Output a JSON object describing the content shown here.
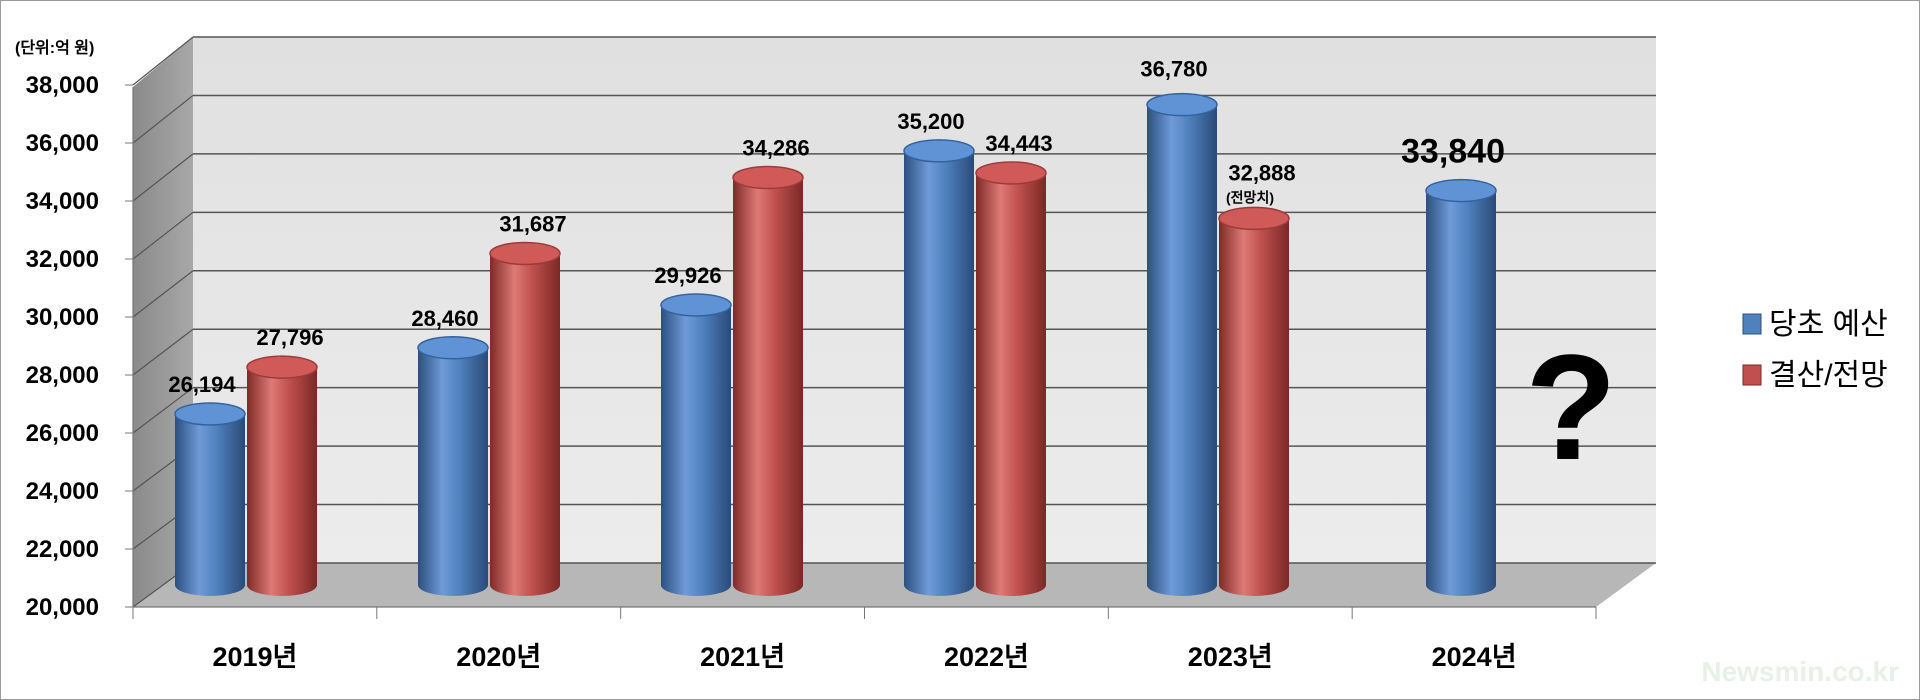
{
  "chart_data": {
    "type": "bar",
    "unit_label": "(단위:억 원)",
    "categories": [
      "2019년",
      "2020년",
      "2021년",
      "2022년",
      "2023년",
      "2024년"
    ],
    "series": [
      {
        "name": "당초 예산",
        "color": "#4f81bd",
        "values": [
          26194,
          28460,
          29926,
          35200,
          36780,
          33840
        ],
        "labels": [
          "26,194",
          "28,460",
          "29,926",
          "35,200",
          "36,780",
          "33,840"
        ]
      },
      {
        "name": "결산/전망",
        "color": "#c0504d",
        "values": [
          27796,
          31687,
          34286,
          34443,
          32888,
          null
        ],
        "labels": [
          "27,796",
          "31,687",
          "34,286",
          "34,443",
          "32,888",
          null
        ]
      }
    ],
    "yticks": [
      "20,000",
      "22,000",
      "24,000",
      "26,000",
      "28,000",
      "30,000",
      "32,000",
      "34,000",
      "36,000",
      "38,000"
    ],
    "ylim": [
      20000,
      38000
    ],
    "grid": true,
    "legend_position": "right",
    "annotations": {
      "forecast_note": "(전망치)",
      "question_mark": "?"
    },
    "watermark": "Newsmin.co.kr"
  }
}
